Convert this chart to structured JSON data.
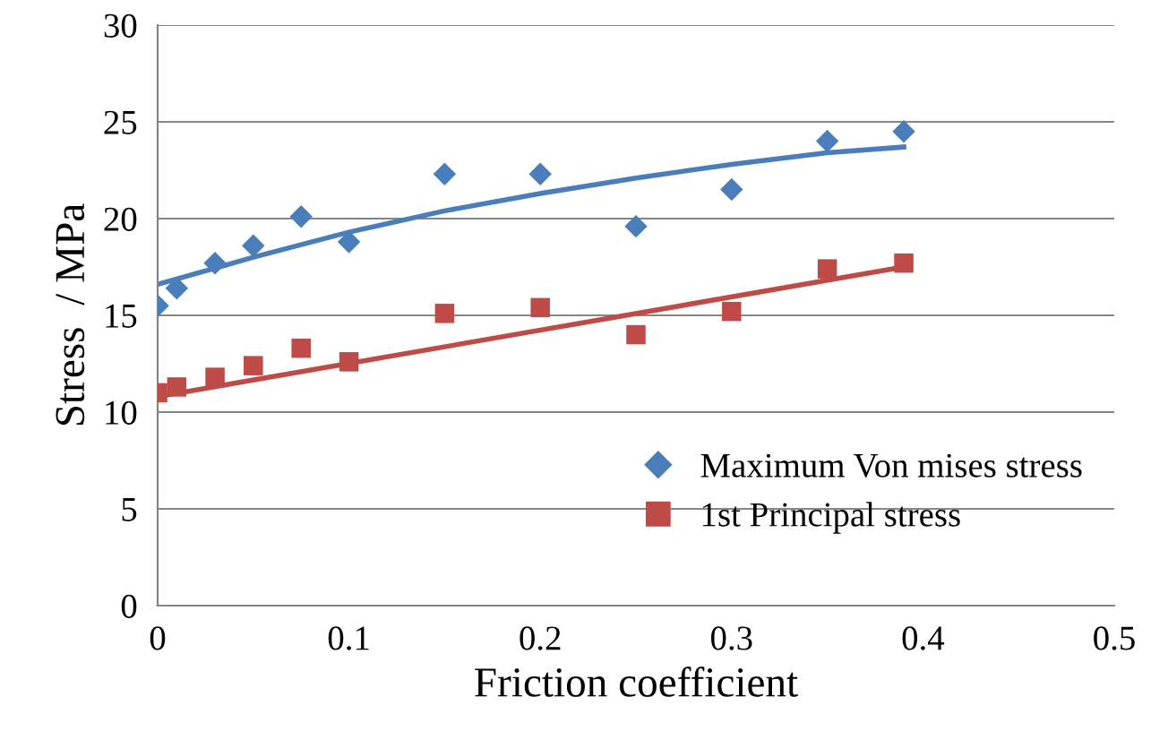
{
  "chart_data": {
    "type": "scatter",
    "xlabel": "Friction coefficient",
    "ylabel": "Stress  / MPa",
    "xlim": [
      0,
      0.5
    ],
    "xticks": [
      0,
      0.1,
      0.2,
      0.3,
      0.4,
      0.5
    ],
    "ylim": [
      0,
      30
    ],
    "yticks": [
      0,
      5,
      10,
      15,
      20,
      25,
      30
    ],
    "grid": "y",
    "legend": "bottom right",
    "series": [
      {
        "name": "Maximum Von mises stress",
        "color": "#4a7ebb",
        "marker": "diamond",
        "x": [
          0,
          0.01,
          0.03,
          0.05,
          0.075,
          0.1,
          0.15,
          0.2,
          0.25,
          0.3,
          0.35,
          0.39
        ],
        "values": [
          15.5,
          16.4,
          17.7,
          18.6,
          20.1,
          18.8,
          22.3,
          22.3,
          19.6,
          21.5,
          24.0,
          24.5
        ]
      },
      {
        "name": "1st Principal stress",
        "color": "#be4b48",
        "marker": "square",
        "x": [
          0,
          0.01,
          0.03,
          0.05,
          0.075,
          0.1,
          0.15,
          0.2,
          0.25,
          0.3,
          0.35,
          0.39
        ],
        "values": [
          11.0,
          11.3,
          11.8,
          12.4,
          13.3,
          12.6,
          15.1,
          15.4,
          14.0,
          15.2,
          17.4,
          17.7
        ]
      },
      {
        "type": "line",
        "color": "#4a7ebb",
        "line_style": "solid",
        "x": [
          0,
          0.05,
          0.1,
          0.15,
          0.2,
          0.25,
          0.3,
          0.35,
          0.39
        ],
        "values": [
          16.6,
          18.0,
          19.3,
          20.4,
          21.3,
          22.1,
          22.8,
          23.4,
          23.7
        ]
      },
      {
        "type": "line",
        "color": "#be4b48",
        "line_style": "solid",
        "x": [
          0,
          0.39
        ],
        "values": [
          10.8,
          17.5
        ]
      }
    ]
  }
}
